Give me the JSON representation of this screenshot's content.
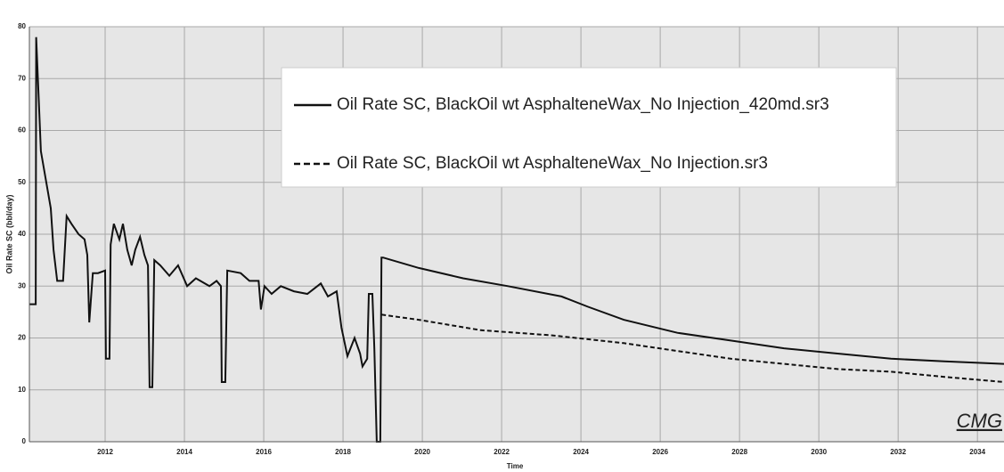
{
  "chart_data": {
    "type": "line",
    "x_label": "Time",
    "y_label": "Oil Rate SC (bbl/day)",
    "logo": "CMG",
    "xlim": [
      2010.09,
      2034.67
    ],
    "ylim": [
      0,
      80
    ],
    "xticks": [
      2012,
      2014,
      2016,
      2018,
      2020,
      2022,
      2024,
      2026,
      2028,
      2030,
      2032,
      2034
    ],
    "yticks": [
      0,
      10,
      20,
      30,
      40,
      50,
      60,
      70,
      80
    ],
    "grid": true,
    "legend": "top",
    "series": [
      {
        "name": "Oil Rate SC, BlackOil wt AsphalteneWax_No Injection_420md.sr3",
        "color": "#111111",
        "line_style": "solid",
        "x": [
          2010.09,
          2010.25,
          2010.26,
          2010.38,
          2010.63,
          2010.7,
          2010.79,
          2010.94,
          2011.03,
          2011.15,
          2011.33,
          2011.48,
          2011.55,
          2011.6,
          2011.69,
          2011.82,
          2012.0,
          2012.02,
          2012.11,
          2012.14,
          2012.22,
          2012.36,
          2012.45,
          2012.56,
          2012.67,
          2012.76,
          2012.88,
          2012.99,
          2013.08,
          2013.12,
          2013.19,
          2013.24,
          2013.39,
          2013.62,
          2013.84,
          2014.07,
          2014.29,
          2014.63,
          2014.81,
          2014.92,
          2014.94,
          2015.03,
          2015.08,
          2015.42,
          2015.64,
          2015.87,
          2015.93,
          2016.02,
          2016.2,
          2016.43,
          2016.76,
          2017.1,
          2017.44,
          2017.62,
          2017.84,
          2017.96,
          2018.11,
          2018.29,
          2018.43,
          2018.49,
          2018.61,
          2018.65,
          2018.74,
          2018.79,
          2018.85,
          2018.94,
          2018.97,
          2019.01,
          2019.91,
          2021.03,
          2022.16,
          2023.51,
          2024.18,
          2025.08,
          2026.43,
          2027.78,
          2029.12,
          2030.47,
          2031.82,
          2033.17,
          2034.67
        ],
        "values": [
          26.5,
          26.5,
          78,
          56,
          45,
          37,
          31,
          31,
          43.5,
          42,
          40,
          39,
          36,
          23,
          32.5,
          32.5,
          33,
          16,
          16,
          38,
          42,
          39,
          42,
          37,
          34,
          37,
          39.5,
          36,
          34,
          10.5,
          10.5,
          35,
          34,
          32,
          34,
          30,
          31.5,
          30,
          31,
          30,
          11.5,
          11.5,
          33,
          32.5,
          31,
          31,
          25.5,
          30,
          28.5,
          30,
          29,
          28.5,
          30.5,
          28,
          29,
          22,
          16.5,
          20,
          17,
          14.5,
          16,
          28.5,
          28.5,
          18,
          0,
          0,
          35.5,
          35.5,
          33.5,
          31.5,
          30,
          28,
          26,
          23.5,
          21,
          19.5,
          18,
          17,
          16,
          15.5,
          15
        ]
      },
      {
        "name": "Oil Rate SC, BlackOil wt AsphalteneWax_No Injection.sr3",
        "color": "#111111",
        "line_style": "dashed",
        "x": [
          2018.97,
          2019.91,
          2021.48,
          2023.28,
          2025.08,
          2026.43,
          2027.78,
          2029.12,
          2030.47,
          2031.82,
          2033.17,
          2034.67
        ],
        "values": [
          24.5,
          23.5,
          21.5,
          20.5,
          19,
          17.5,
          16,
          15,
          14,
          13.5,
          12.5,
          11.5
        ]
      }
    ]
  }
}
